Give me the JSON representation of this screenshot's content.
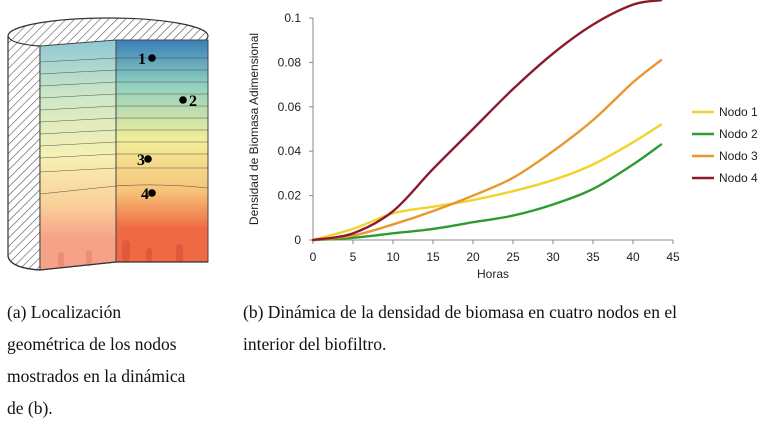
{
  "figure_a": {
    "node_labels": [
      "1",
      "2",
      "3",
      "4"
    ],
    "colors": {
      "top": "#3a7fb8",
      "mid1": "#8fd0c0",
      "mid2": "#f2ee9a",
      "mid3": "#f6c47a",
      "bottom": "#ef6a42",
      "bottom_light": "#f6a288"
    },
    "caption_lines": [
      "(a) Localización",
      "geométrica de los nodos",
      "mostrados en la dinámica",
      "de (b)."
    ]
  },
  "figure_b": {
    "caption_lines": [
      "(b) Dinámica de la densidad de biomasa en cuatro nodos en el",
      "interior del biofiltro."
    ]
  },
  "chart_data": {
    "type": "line",
    "title": "",
    "xlabel": "Horas",
    "ylabel": "Densidad de Biomasa Adimensional",
    "xlim": [
      0,
      45
    ],
    "ylim": [
      0,
      0.1
    ],
    "xticks": [
      "0",
      "5",
      "10",
      "15",
      "20",
      "25",
      "30",
      "35",
      "40",
      "45"
    ],
    "yticks": [
      "0",
      "0.02",
      "0.04",
      "0.06",
      "0.08",
      "0.1"
    ],
    "legend_position": "right",
    "x": [
      0,
      5,
      10,
      15,
      20,
      25,
      30,
      35,
      40,
      43.5
    ],
    "series": [
      {
        "name": "Nodo 1",
        "color": "#f1d32a",
        "values": [
          0,
          0.005,
          0.012,
          0.015,
          0.018,
          0.022,
          0.027,
          0.034,
          0.044,
          0.052
        ]
      },
      {
        "name": "Nodo 2",
        "color": "#2e9b32",
        "values": [
          0,
          0.001,
          0.003,
          0.005,
          0.008,
          0.011,
          0.016,
          0.023,
          0.034,
          0.043
        ]
      },
      {
        "name": "Nodo 3",
        "color": "#e8962e",
        "values": [
          0,
          0.002,
          0.007,
          0.013,
          0.02,
          0.028,
          0.04,
          0.054,
          0.071,
          0.081
        ]
      },
      {
        "name": "Nodo 4",
        "color": "#8b1a2b",
        "values": [
          0,
          0.003,
          0.013,
          0.032,
          0.05,
          0.068,
          0.084,
          0.097,
          0.106,
          0.108
        ]
      }
    ]
  }
}
